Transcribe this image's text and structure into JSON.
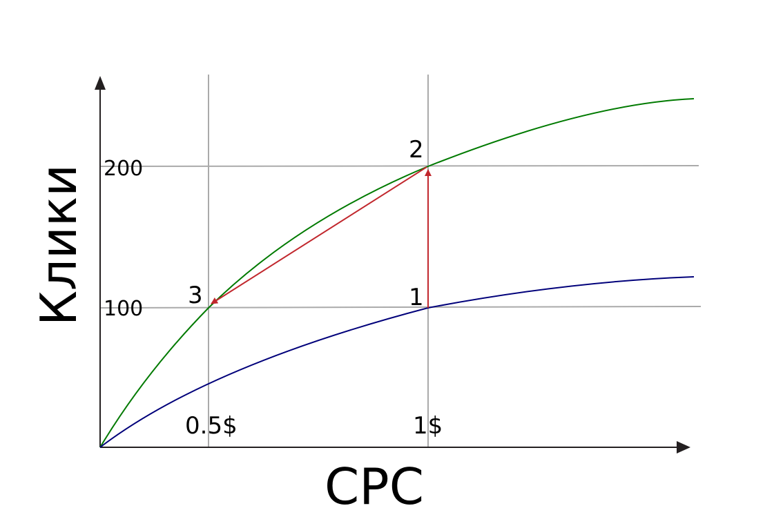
{
  "axes": {
    "x_label": "CPC",
    "y_label": "Клики"
  },
  "x_ticks": [
    "0.5$",
    "1$"
  ],
  "y_ticks": [
    "100",
    "200"
  ],
  "points": [
    "1",
    "2",
    "3"
  ]
}
